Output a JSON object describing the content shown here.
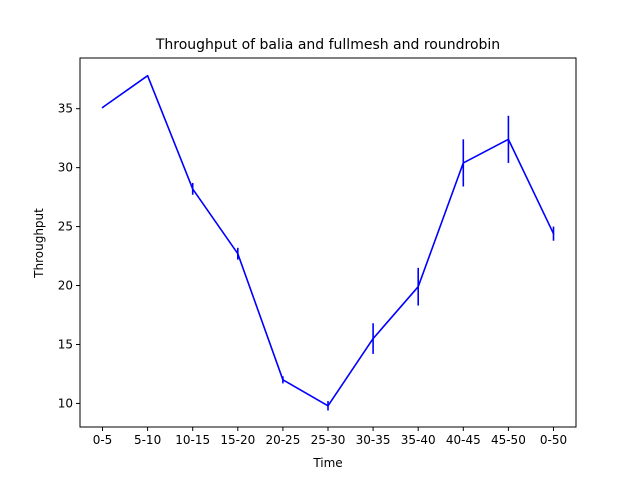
{
  "chart_data": {
    "type": "line",
    "title": "Throughput of balia and fullmesh and roundrobin",
    "xlabel": "Time",
    "ylabel": "Throughput",
    "categories": [
      "0-5",
      "5-10",
      "10-15",
      "15-20",
      "20-25",
      "25-30",
      "30-35",
      "35-40",
      "40-45",
      "45-50",
      "0-50"
    ],
    "ylim": [
      8.0,
      39.3
    ],
    "yticks": [
      10,
      15,
      20,
      25,
      30,
      35
    ],
    "grid": false,
    "line_color": "#0000ff",
    "series": [
      {
        "values": [
          35.1,
          37.8,
          28.2,
          22.7,
          12.0,
          9.8,
          15.5,
          19.9,
          30.4,
          32.4,
          24.4
        ],
        "errors": [
          0.0,
          0.0,
          0.5,
          0.5,
          0.3,
          0.4,
          1.3,
          1.6,
          2.0,
          2.0,
          0.6
        ]
      }
    ]
  }
}
